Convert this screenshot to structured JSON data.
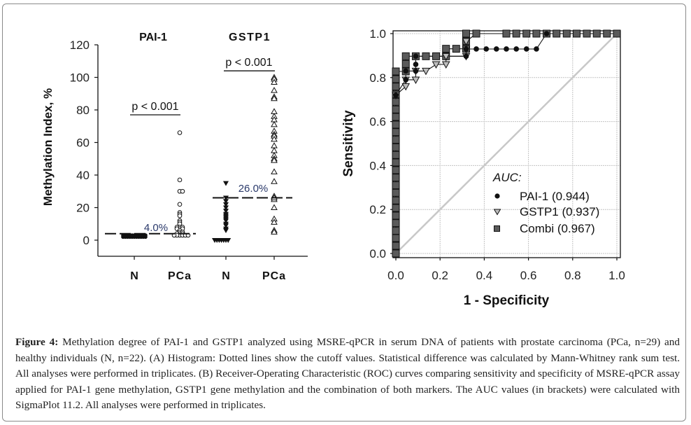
{
  "chart_data": [
    {
      "panel": "A",
      "type": "scatter",
      "subtype": "dot-plot",
      "groups": [
        "PAI-1",
        "GSTP1"
      ],
      "categories": [
        "N",
        "PCa",
        "N",
        "PCa"
      ],
      "ylabel": "Methylation Index, %",
      "xlabel": "",
      "ylim": [
        -10,
        120
      ],
      "yticks": [
        0,
        20,
        40,
        60,
        80,
        100,
        120
      ],
      "grid": false,
      "series": [
        {
          "name": "PAI-1 N",
          "group": "PAI-1",
          "category": "N",
          "marker": "filled-circle",
          "values": [
            2,
            2,
            2,
            2,
            2,
            2,
            2,
            2,
            2,
            2,
            2,
            3,
            3,
            3,
            3,
            3,
            3,
            3,
            3,
            3,
            3,
            3
          ]
        },
        {
          "name": "PAI-1 PCa",
          "group": "PAI-1",
          "category": "PCa",
          "marker": "open-circle",
          "values": [
            66,
            37,
            30,
            30,
            22,
            17,
            16,
            15,
            12,
            11,
            10,
            8,
            8,
            8,
            7,
            7,
            7,
            6,
            5,
            5,
            4,
            4,
            4,
            3,
            3,
            3,
            3,
            3,
            3
          ]
        },
        {
          "name": "GSTP1 N",
          "group": "GSTP1",
          "category": "N",
          "marker": "filled-triangle-down",
          "values": [
            35,
            26,
            24,
            22,
            20,
            18,
            16,
            15,
            14,
            13,
            12,
            10,
            9,
            7,
            6,
            0,
            0,
            0,
            0,
            0,
            0,
            0
          ]
        },
        {
          "name": "GSTP1 PCa",
          "group": "GSTP1",
          "category": "PCa",
          "marker": "open-triangle-up",
          "values": [
            100,
            99,
            97,
            92,
            88,
            87,
            79,
            76,
            74,
            71,
            67,
            65,
            64,
            62,
            58,
            55,
            52,
            50,
            49,
            42,
            36,
            27,
            25,
            20,
            13,
            11,
            6,
            5,
            26
          ]
        }
      ],
      "cutoffs": [
        {
          "group": "PAI-1",
          "value": 4.0,
          "label": "4.0%"
        },
        {
          "group": "GSTP1",
          "value": 26.0,
          "label": "26.0%"
        }
      ],
      "annotations": [
        {
          "group": "PAI-1",
          "text": "p < 0.001",
          "y": 77
        },
        {
          "group": "GSTP1",
          "text": "p < 0.001",
          "y": 104
        }
      ]
    },
    {
      "panel": "B",
      "type": "line",
      "subtype": "roc",
      "xlabel": "1 - Specificity",
      "ylabel": "Sensitivity",
      "xlim": [
        0,
        1
      ],
      "ylim": [
        0,
        1
      ],
      "xticks": [
        "0.0",
        "0.2",
        "0.4",
        "0.6",
        "0.8",
        "1.0"
      ],
      "yticks": [
        "0.0",
        "0.2",
        "0.4",
        "0.6",
        "0.8",
        "1.0"
      ],
      "grid": true,
      "legend_title": "AUC:",
      "legend_position": "bottom-right",
      "reference_line": [
        [
          0,
          0
        ],
        [
          1,
          1
        ]
      ],
      "series": [
        {
          "name": "PAI-1",
          "label": "PAI-1 (0.944)",
          "auc": 0.944,
          "marker": "filled-circle",
          "points": [
            [
              0,
              0
            ],
            [
              0,
              0.72
            ],
            [
              0.045,
              0.79
            ],
            [
              0.045,
              0.83
            ],
            [
              0.09,
              0.83
            ],
            [
              0.09,
              0.86
            ],
            [
              0.09,
              0.897
            ],
            [
              0.318,
              0.897
            ],
            [
              0.318,
              0.93
            ],
            [
              0.364,
              0.93
            ],
            [
              0.409,
              0.93
            ],
            [
              0.455,
              0.93
            ],
            [
              0.5,
              0.93
            ],
            [
              0.545,
              0.93
            ],
            [
              0.591,
              0.93
            ],
            [
              0.636,
              0.93
            ],
            [
              0.682,
              1.0
            ],
            [
              1,
              1
            ]
          ]
        },
        {
          "name": "GSTP1",
          "label": "GSTP1 (0.937)",
          "auc": 0.937,
          "marker": "open-triangle-down",
          "points": [
            [
              0,
              0
            ],
            [
              0,
              0.72
            ],
            [
              0.045,
              0.76
            ],
            [
              0.045,
              0.79
            ],
            [
              0.09,
              0.79
            ],
            [
              0.09,
              0.83
            ],
            [
              0.136,
              0.83
            ],
            [
              0.182,
              0.86
            ],
            [
              0.227,
              0.86
            ],
            [
              0.227,
              0.897
            ],
            [
              0.318,
              0.897
            ],
            [
              0.318,
              0.93
            ],
            [
              0.318,
              0.965
            ],
            [
              0.364,
              1.0
            ],
            [
              1,
              1
            ]
          ]
        },
        {
          "name": "Combi",
          "label": "Combi (0.967)",
          "auc": 0.967,
          "marker": "filled-square-gray",
          "points": [
            [
              0,
              0
            ],
            [
              0,
              0.035
            ],
            [
              0,
              0.07
            ],
            [
              0,
              0.103
            ],
            [
              0,
              0.138
            ],
            [
              0,
              0.172
            ],
            [
              0,
              0.207
            ],
            [
              0,
              0.241
            ],
            [
              0,
              0.276
            ],
            [
              0,
              0.31
            ],
            [
              0,
              0.345
            ],
            [
              0,
              0.379
            ],
            [
              0,
              0.414
            ],
            [
              0,
              0.448
            ],
            [
              0,
              0.483
            ],
            [
              0,
              0.517
            ],
            [
              0,
              0.552
            ],
            [
              0,
              0.586
            ],
            [
              0,
              0.621
            ],
            [
              0,
              0.655
            ],
            [
              0,
              0.69
            ],
            [
              0,
              0.724
            ],
            [
              0,
              0.759
            ],
            [
              0,
              0.793
            ],
            [
              0,
              0.828
            ],
            [
              0.045,
              0.828
            ],
            [
              0.045,
              0.862
            ],
            [
              0.045,
              0.897
            ],
            [
              0.09,
              0.897
            ],
            [
              0.136,
              0.897
            ],
            [
              0.182,
              0.897
            ],
            [
              0.227,
              0.897
            ],
            [
              0.227,
              0.931
            ],
            [
              0.273,
              0.931
            ],
            [
              0.318,
              0.931
            ],
            [
              0.318,
              0.966
            ],
            [
              0.318,
              1.0
            ],
            [
              0.364,
              1.0
            ],
            [
              0.5,
              1.0
            ],
            [
              0.545,
              1.0
            ],
            [
              0.591,
              1.0
            ],
            [
              0.636,
              1.0
            ],
            [
              0.682,
              1.0
            ],
            [
              0.727,
              1.0
            ],
            [
              0.773,
              1.0
            ],
            [
              0.818,
              1.0
            ],
            [
              0.864,
              1.0
            ],
            [
              0.909,
              1.0
            ],
            [
              0.955,
              1.0
            ],
            [
              1.0,
              1.0
            ]
          ]
        }
      ]
    }
  ],
  "caption": {
    "label": "Figure 4:",
    "text": " Methylation degree of PAI-1 and GSTP1 analyzed using MSRE-qPCR in serum DNA of patients with prostate carcinoma (PCa, n=29) and healthy individuals (N, n=22). (A) Histogram: Dotted lines show the cutoff values. Statistical difference was calculated by Mann-Whitney rank sum test. All analyses were performed in triplicates. (B) Receiver-Operating Characteristic (ROC) curves comparing sensitivity and specificity of MSRE-qPCR assay applied for PAI-1 gene methylation, GSTP1 gene methylation and the combination of both markers. The AUC values (in brackets) were calculated with SigmaPlot 11.2. All analyses were performed in triplicates."
  },
  "colors": {
    "text": "#111111",
    "cutoff_label": "#2b3a6b",
    "grid": "#bdbdbd",
    "reference_line": "#c8c8c8",
    "combi_fill": "#5a5a5a",
    "gstp1_fill": "#bdbdbd"
  }
}
